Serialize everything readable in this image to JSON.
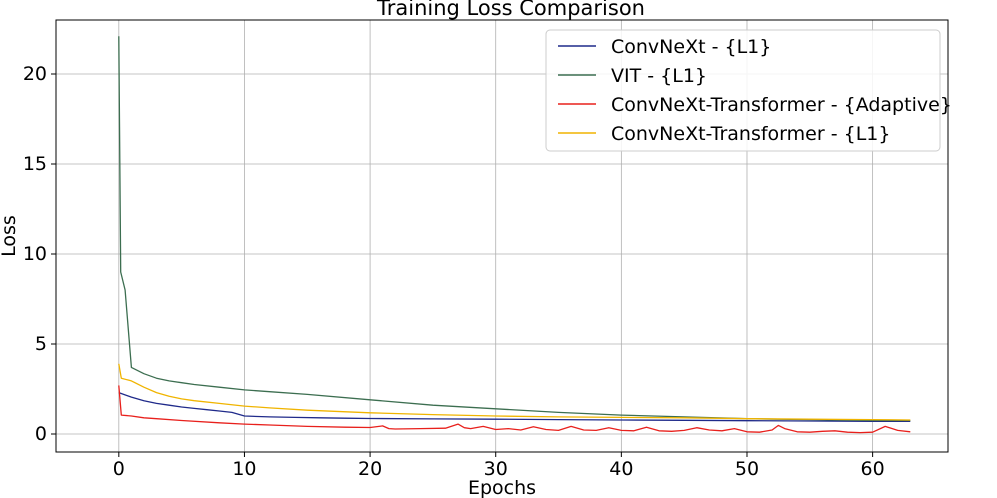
{
  "chart_data": {
    "type": "line",
    "title": "Training Loss Comparison",
    "xlabel": "Epochs",
    "ylabel": "Loss",
    "xlim": [
      -5,
      66
    ],
    "ylim": [
      -1,
      23
    ],
    "xticks": [
      0,
      10,
      20,
      30,
      40,
      50,
      60
    ],
    "yticks": [
      0,
      5,
      10,
      15,
      20
    ],
    "grid": true,
    "legend_position": "top-right",
    "series": [
      {
        "name": "ConvNeXt - {L1}",
        "color": "#1f2a8a",
        "x": [
          0,
          1,
          2,
          3,
          4,
          5,
          6,
          7,
          8,
          9,
          10,
          12,
          14,
          16,
          18,
          20,
          25,
          30,
          35,
          40,
          45,
          50,
          55,
          60,
          63
        ],
        "y": [
          2.3,
          2.05,
          1.85,
          1.7,
          1.6,
          1.5,
          1.42,
          1.35,
          1.28,
          1.2,
          1.0,
          0.95,
          0.92,
          0.9,
          0.88,
          0.86,
          0.84,
          0.82,
          0.8,
          0.78,
          0.76,
          0.74,
          0.72,
          0.7,
          0.7
        ]
      },
      {
        "name": "VIT - {L1}",
        "color": "#3c6e50",
        "x": [
          0,
          0.15,
          0.5,
          1,
          2,
          3,
          4,
          5,
          6,
          8,
          10,
          12,
          15,
          20,
          25,
          30,
          35,
          40,
          45,
          50,
          55,
          60,
          63
        ],
        "y": [
          22.1,
          9.0,
          8.0,
          3.7,
          3.35,
          3.1,
          2.95,
          2.85,
          2.75,
          2.6,
          2.45,
          2.35,
          2.2,
          1.9,
          1.6,
          1.4,
          1.2,
          1.05,
          0.95,
          0.85,
          0.8,
          0.75,
          0.75
        ]
      },
      {
        "name": "ConvNeXt-Transformer - {Adaptive}",
        "color": "#e8201c",
        "x": [
          0,
          0.2,
          1,
          2,
          3,
          5,
          8,
          10,
          12,
          15,
          18,
          20,
          21,
          21.5,
          22,
          24,
          26,
          27,
          27.5,
          28,
          29,
          30,
          31,
          32,
          33,
          34,
          35,
          36,
          37,
          38,
          39,
          40,
          41,
          42,
          43,
          44,
          45,
          46,
          47,
          48,
          49,
          50,
          51,
          52,
          52.5,
          53,
          54,
          55,
          56,
          57,
          58,
          59,
          60,
          61,
          62,
          63
        ],
        "y": [
          2.7,
          1.05,
          1.0,
          0.9,
          0.85,
          0.75,
          0.62,
          0.55,
          0.5,
          0.42,
          0.38,
          0.36,
          0.45,
          0.3,
          0.28,
          0.3,
          0.32,
          0.55,
          0.35,
          0.3,
          0.42,
          0.25,
          0.3,
          0.22,
          0.4,
          0.25,
          0.2,
          0.42,
          0.22,
          0.2,
          0.35,
          0.2,
          0.18,
          0.38,
          0.18,
          0.15,
          0.2,
          0.35,
          0.22,
          0.18,
          0.3,
          0.12,
          0.1,
          0.22,
          0.48,
          0.3,
          0.12,
          0.1,
          0.15,
          0.18,
          0.1,
          0.08,
          0.1,
          0.42,
          0.2,
          0.12
        ]
      },
      {
        "name": "ConvNeXt-Transformer - {L1}",
        "color": "#f0b400",
        "x": [
          0,
          0.2,
          1,
          2,
          3,
          4,
          5,
          6,
          8,
          10,
          12,
          15,
          20,
          25,
          30,
          35,
          40,
          45,
          50,
          55,
          60,
          63
        ],
        "y": [
          3.9,
          3.1,
          2.95,
          2.6,
          2.3,
          2.1,
          1.95,
          1.85,
          1.7,
          1.55,
          1.45,
          1.32,
          1.18,
          1.08,
          1.0,
          0.95,
          0.92,
          0.9,
          0.85,
          0.82,
          0.8,
          0.78
        ]
      }
    ]
  }
}
